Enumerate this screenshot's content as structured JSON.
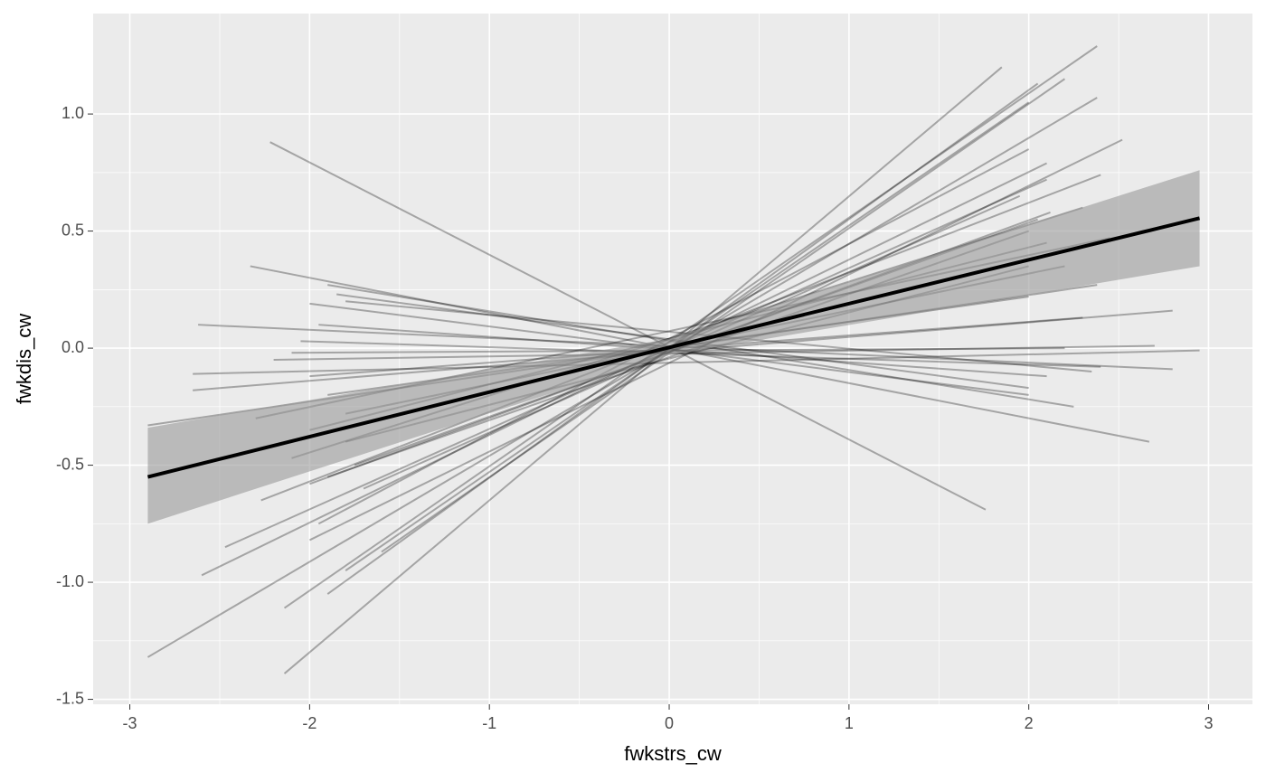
{
  "chart_data": {
    "type": "line",
    "x_label": "fwkstrs_cw",
    "y_label": "fwkdis_cw",
    "xlim": [
      -3.204,
      3.244
    ],
    "ylim": [
      -1.521,
      1.429
    ],
    "xticks": [
      -3,
      -2,
      -1,
      0,
      1,
      2,
      3
    ],
    "yticks": [
      -1.5,
      {
        "value": -1.0,
        "label": "-1.0"
      },
      -0.5,
      {
        "value": 0.0,
        "label": "0.0"
      },
      0.5,
      {
        "value": 1.0,
        "label": "1.0"
      }
    ],
    "grid": true,
    "line_color": "#000000",
    "series": [
      {
        "x": [
          -2.22,
          1.76
        ],
        "values": [
          0.88,
          -0.69
        ]
      },
      {
        "x": [
          -2.9,
          2.38
        ],
        "values": [
          -1.32,
          1.07
        ]
      },
      {
        "x": [
          -2.14,
          1.85
        ],
        "values": [
          -1.39,
          1.2
        ]
      },
      {
        "x": [
          -2.14,
          2.38
        ],
        "values": [
          -1.11,
          1.29
        ]
      },
      {
        "x": [
          -2.6,
          2.1
        ],
        "values": [
          -0.97,
          0.79
        ]
      },
      {
        "x": [
          -2.47,
          2.1
        ],
        "values": [
          -0.85,
          0.72
        ]
      },
      {
        "x": [
          -1.9,
          2.05
        ],
        "values": [
          -1.05,
          1.13
        ]
      },
      {
        "x": [
          -1.8,
          2.0
        ],
        "values": [
          -0.95,
          1.05
        ]
      },
      {
        "x": [
          -2.0,
          2.52
        ],
        "values": [
          -0.82,
          0.89
        ]
      },
      {
        "x": [
          -2.9,
          2.38
        ],
        "values": [
          -0.33,
          0.27
        ]
      },
      {
        "x": [
          -2.62,
          2.8
        ],
        "values": [
          0.1,
          -0.09
        ]
      },
      {
        "x": [
          -2.65,
          2.95
        ],
        "values": [
          -0.11,
          -0.01
        ]
      },
      {
        "x": [
          -2.65,
          2.8
        ],
        "values": [
          -0.18,
          0.16
        ]
      },
      {
        "x": [
          -2.33,
          2.67
        ],
        "values": [
          0.35,
          -0.4
        ]
      },
      {
        "x": [
          -1.9,
          2.25
        ],
        "values": [
          0.27,
          -0.25
        ]
      },
      {
        "x": [
          -2.0,
          2.0
        ],
        "values": [
          0.19,
          -0.2
        ]
      },
      {
        "x": [
          -1.8,
          2.35
        ],
        "values": [
          0.2,
          -0.1
        ]
      },
      {
        "x": [
          -1.85,
          2.0
        ],
        "values": [
          0.23,
          -0.17
        ]
      },
      {
        "x": [
          -2.27,
          2.4
        ],
        "values": [
          -0.65,
          0.74
        ]
      },
      {
        "x": [
          -2.3,
          2.45
        ],
        "values": [
          -0.3,
          0.47
        ]
      },
      {
        "x": [
          -2.1,
          2.3
        ],
        "values": [
          -0.47,
          0.6
        ]
      },
      {
        "x": [
          -2.0,
          2.1
        ],
        "values": [
          -0.35,
          0.45
        ]
      },
      {
        "x": [
          -1.9,
          2.0
        ],
        "values": [
          -0.55,
          0.5
        ]
      },
      {
        "x": [
          -2.0,
          2.12
        ],
        "values": [
          -0.58,
          0.58
        ]
      },
      {
        "x": [
          -1.95,
          2.0
        ],
        "values": [
          -0.75,
          0.85
        ]
      },
      {
        "x": [
          -2.2,
          2.7
        ],
        "values": [
          -0.05,
          0.01
        ]
      },
      {
        "x": [
          -2.1,
          2.2
        ],
        "values": [
          -0.02,
          0.0
        ]
      },
      {
        "x": [
          -1.8,
          2.0
        ],
        "values": [
          -0.4,
          0.35
        ]
      },
      {
        "x": [
          -2.0,
          2.3
        ],
        "values": [
          -0.12,
          0.13
        ]
      },
      {
        "x": [
          -1.95,
          2.1
        ],
        "values": [
          0.1,
          -0.12
        ]
      },
      {
        "x": [
          -1.7,
          1.95
        ],
        "values": [
          -0.6,
          0.65
        ]
      },
      {
        "x": [
          -1.8,
          2.2
        ],
        "values": [
          -0.28,
          0.35
        ]
      },
      {
        "x": [
          -2.05,
          2.4
        ],
        "values": [
          0.03,
          -0.08
        ]
      },
      {
        "x": [
          -1.9,
          2.0
        ],
        "values": [
          -0.2,
          0.22
        ]
      },
      {
        "x": [
          -1.6,
          2.2
        ],
        "values": [
          -0.87,
          1.15
        ]
      },
      {
        "x": [
          -1.75,
          2.05
        ],
        "values": [
          -0.5,
          0.55
        ]
      }
    ],
    "fit": {
      "color": "#000000",
      "band_color": "#999999",
      "x": [
        -2.9,
        0,
        2.95
      ],
      "values": [
        -0.55,
        0.003,
        0.555
      ],
      "lower": [
        -0.75,
        -0.03,
        0.35
      ],
      "upper": [
        -0.34,
        0.04,
        0.76
      ]
    }
  }
}
